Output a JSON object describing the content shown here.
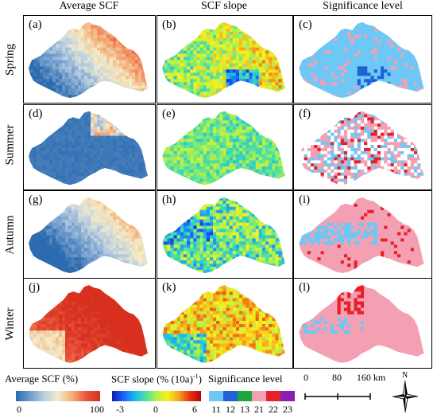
{
  "columns": [
    "Average SCF",
    "SCF slope",
    "Significance level"
  ],
  "rows": [
    "Spring",
    "Summer",
    "Autumn",
    "Winter"
  ],
  "panels": [
    [
      "(a)",
      "(b)",
      "(c)"
    ],
    [
      "(d)",
      "(e)",
      "(f)"
    ],
    [
      "(g)",
      "(h)",
      "(i)"
    ],
    [
      "(j)",
      "(k)",
      "(l)"
    ]
  ],
  "legend": {
    "avg": {
      "title": "Average SCF (%)",
      "min": "0",
      "max": "100",
      "colors": [
        "#2c6bb0",
        "#6f9ccb",
        "#b9cde0",
        "#f3ecc8",
        "#f4b07a",
        "#e9553b",
        "#d7301f"
      ]
    },
    "slope": {
      "title_main": "SCF slope (% (10a)",
      "title_sup": "-1",
      "title_end": ")",
      "ticks": [
        "-3",
        "0",
        "6"
      ],
      "colors": [
        "#0b1fa8",
        "#1e5fff",
        "#19b4f0",
        "#49e0a5",
        "#b6f048",
        "#f6f21f",
        "#f8a41c",
        "#e93113",
        "#b5000e"
      ]
    },
    "sig": {
      "title": "Significance level",
      "classes": [
        {
          "label": "11",
          "color": "#6ec8f5"
        },
        {
          "label": "12",
          "color": "#1f62d6"
        },
        {
          "label": "13",
          "color": "#1ea53b"
        },
        {
          "label": "21",
          "color": "#f4a0b3"
        },
        {
          "label": "22",
          "color": "#e8202a"
        },
        {
          "label": "23",
          "color": "#8a1fb0"
        }
      ]
    }
  },
  "scalebar": {
    "ticks": [
      "0",
      "80",
      "160 km"
    ]
  },
  "north": "N"
}
